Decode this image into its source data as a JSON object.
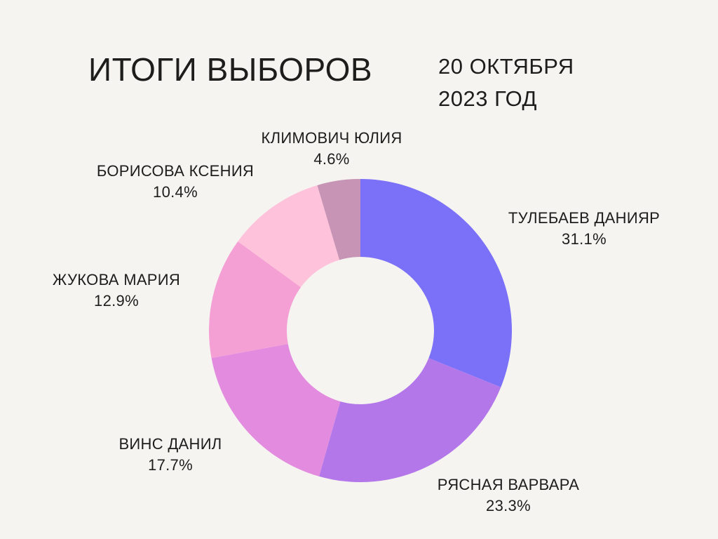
{
  "page": {
    "title": "ИТОГИ ВЫБОРОВ",
    "date_line1": "20 ОКТЯБРЯ",
    "date_line2": "2023 ГОД"
  },
  "colors": {
    "background": "#F5F4F1",
    "text": "#1D1D1B"
  },
  "chart_data": {
    "type": "pie",
    "variant": "donut",
    "title": "ИТОГИ ВЫБОРОВ",
    "subtitle": "20 ОКТЯБРЯ 2023 ГОД",
    "start_angle_deg": 0,
    "direction": "clockwise",
    "inner_radius_ratio": 0.486,
    "legend_position": "around-slices",
    "segments": [
      {
        "label": "ТУЛЕБАЕВ ДАНИЯР",
        "value": 31.1,
        "percent_label": "31.1%",
        "color": "#7B70F8"
      },
      {
        "label": "РЯСНАЯ ВАРВАРА",
        "value": 23.3,
        "percent_label": "23.3%",
        "color": "#B377EA"
      },
      {
        "label": "ВИНС ДАНИЛ",
        "value": 17.7,
        "percent_label": "17.7%",
        "color": "#E38CDF"
      },
      {
        "label": "ЖУКОВА МАРИЯ",
        "value": 12.9,
        "percent_label": "12.9%",
        "color": "#F5A0D5"
      },
      {
        "label": "БОРИСОВА КСЕНИЯ",
        "value": 10.4,
        "percent_label": "10.4%",
        "color": "#FFC2DB"
      },
      {
        "label": "КЛИМОВИЧ ЮЛИЯ",
        "value": 4.6,
        "percent_label": "4.6%",
        "color": "#C794B5"
      }
    ]
  }
}
